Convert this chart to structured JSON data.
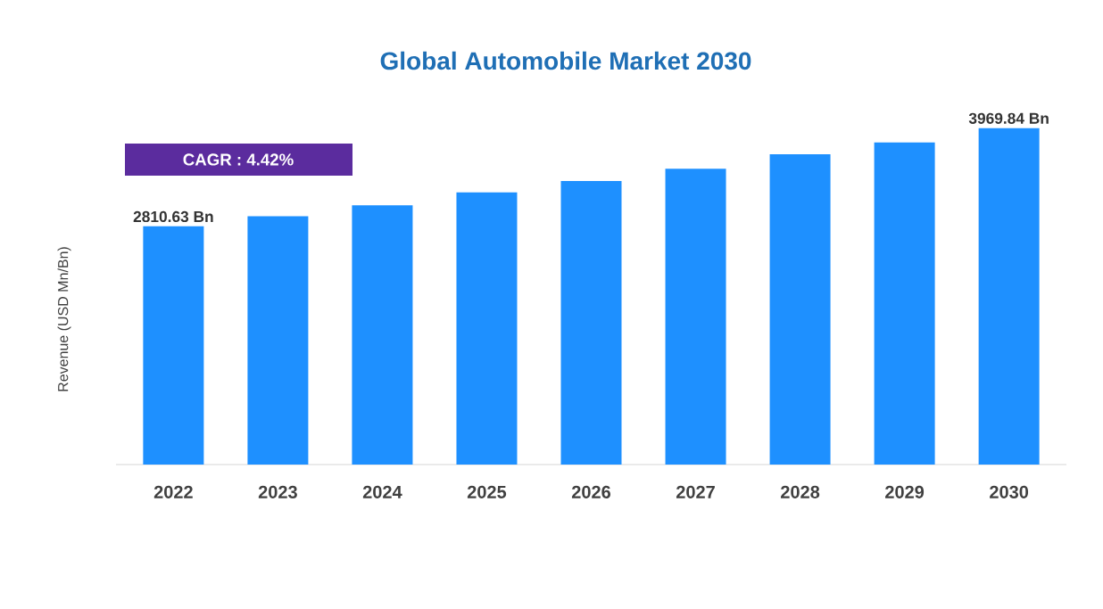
{
  "chart_data": {
    "type": "bar",
    "title": "Global Automobile Market 2030",
    "ylabel": "Revenue (USD Mn/Bn)",
    "categories": [
      "2022",
      "2023",
      "2024",
      "2025",
      "2026",
      "2027",
      "2028",
      "2029",
      "2030"
    ],
    "values": [
      2810.63,
      2930,
      3060,
      3210,
      3345,
      3490,
      3660,
      3800,
      3969.84
    ],
    "value_labels": [
      "2810.63 Bn",
      null,
      null,
      null,
      null,
      null,
      null,
      null,
      "3969.84 Bn"
    ],
    "color": "#1e90ff",
    "annotations": [
      "CAGR : 4.42%"
    ]
  }
}
